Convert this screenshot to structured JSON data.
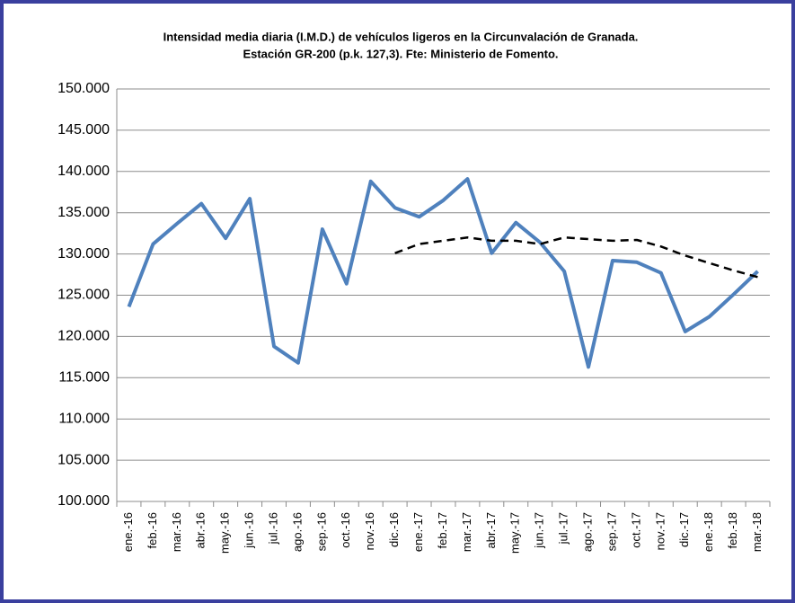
{
  "chart_data": {
    "type": "line",
    "title": "Intensidad media diaria (I.M.D.) de vehículos ligeros en la Circunvalación de Granada.",
    "subtitle": "Estación GR-200 (p.k. 127,3). Fte: Ministerio de Fomento.",
    "categories": [
      "ene.-16",
      "feb.-16",
      "mar.-16",
      "abr.-16",
      "may.-16",
      "jun.-16",
      "jul.-16",
      "ago.-16",
      "sep.-16",
      "oct.-16",
      "nov.-16",
      "dic.-16",
      "ene.-17",
      "feb.-17",
      "mar.-17",
      "abr.-17",
      "may.-17",
      "jun.-17",
      "jul.-17",
      "ago.-17",
      "sep.-17",
      "oct.-17",
      "nov.-17",
      "dic.-17",
      "ene.-18",
      "feb.-18",
      "mar.-18"
    ],
    "series": [
      {
        "color": "#4f81bd",
        "dash": false,
        "values": [
          123600,
          131200,
          133700,
          136100,
          131900,
          136700,
          118800,
          116800,
          133000,
          126400,
          138800,
          135600,
          134500,
          136500,
          139100,
          130100,
          133800,
          131400,
          127900,
          116300,
          129200,
          129000,
          127700,
          120600,
          122400,
          125100,
          127900
        ]
      },
      {
        "color": "#000000",
        "dash": true,
        "values": [
          null,
          null,
          null,
          null,
          null,
          null,
          null,
          null,
          null,
          null,
          null,
          130100,
          131200,
          131600,
          132000,
          131600,
          131600,
          131200,
          132000,
          131800,
          131600,
          131700,
          130900,
          129800,
          128900,
          128000,
          127200
        ]
      }
    ],
    "ylim": [
      100000,
      150000
    ],
    "yticks": [
      {
        "value": 100000,
        "label": "100.000"
      },
      {
        "value": 105000,
        "label": "105.000"
      },
      {
        "value": 110000,
        "label": "110.000"
      },
      {
        "value": 115000,
        "label": "115.000"
      },
      {
        "value": 120000,
        "label": "120.000"
      },
      {
        "value": 125000,
        "label": "125.000"
      },
      {
        "value": 130000,
        "label": "130.000"
      },
      {
        "value": 135000,
        "label": "135.000"
      },
      {
        "value": 140000,
        "label": "140.000"
      },
      {
        "value": 145000,
        "label": "145.000"
      },
      {
        "value": 150000,
        "label": "150.000"
      }
    ],
    "grid": true
  }
}
